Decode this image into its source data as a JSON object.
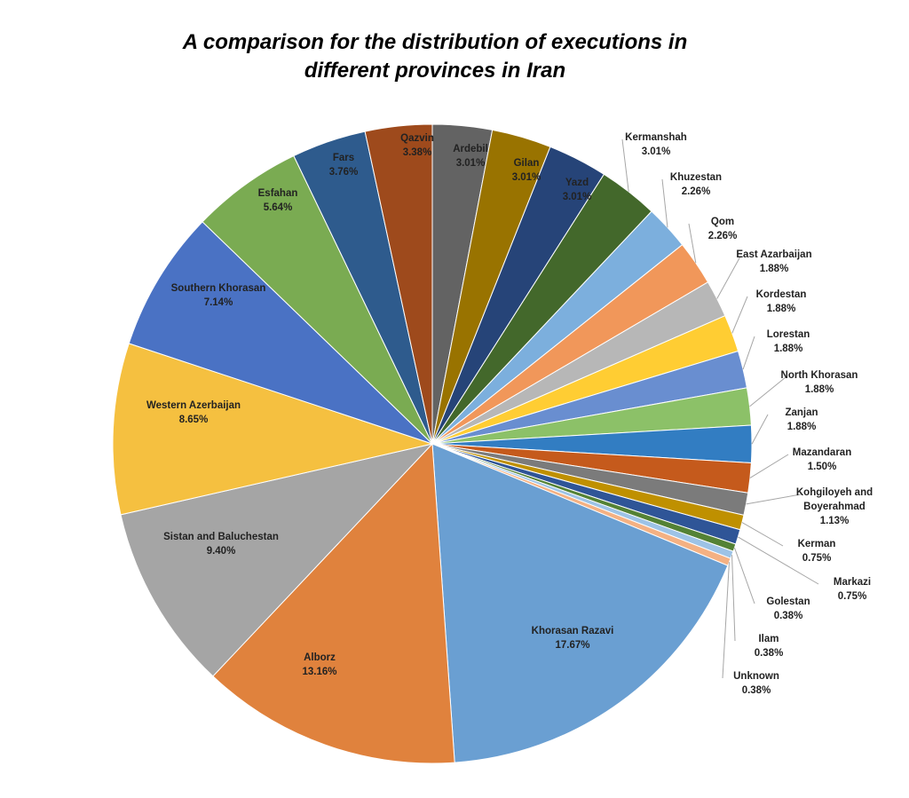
{
  "chart_data": {
    "type": "pie",
    "title": "A comparison for the distribution of executions in different provinces in Iran",
    "categories": [
      "Ardebil",
      "Gilan",
      "Yazd",
      "Kermanshah",
      "Khuzestan",
      "Qom",
      "East Azarbaijan",
      "Kordestan",
      "Lorestan",
      "North Khorasan",
      "Zanjan",
      "Mazandaran",
      "Kohgiloyeh and Boyerahmad",
      "Kerman",
      "Markazi",
      "Golestan",
      "Ilam",
      "Unknown",
      "Khorasan Razavi",
      "Alborz",
      "Sistan and Baluchestan",
      "Western Azerbaijan",
      "Southern Khorasan",
      "Esfahan",
      "Fars",
      "Qazvin"
    ],
    "values": [
      3.01,
      3.01,
      3.01,
      3.01,
      2.26,
      2.26,
      1.88,
      1.88,
      1.88,
      1.88,
      1.88,
      1.5,
      1.13,
      0.75,
      0.75,
      0.38,
      0.38,
      0.38,
      17.67,
      13.16,
      9.4,
      8.65,
      7.14,
      5.64,
      3.76,
      3.38
    ],
    "value_labels": [
      "3.01%",
      "3.01%",
      "3.01%",
      "3.01%",
      "2.26%",
      "2.26%",
      "1.88%",
      "1.88%",
      "1.88%",
      "1.88%",
      "1.88%",
      "1.50%",
      "1.13%",
      "0.75%",
      "0.75%",
      "0.38%",
      "0.38%",
      "0.38%",
      "17.67%",
      "13.16%",
      "9.40%",
      "8.65%",
      "7.14%",
      "5.64%",
      "3.76%",
      "3.38%"
    ],
    "colors": [
      "#636363",
      "#997300",
      "#264478",
      "#43682b",
      "#7cafdd",
      "#f1975a",
      "#b7b7b7",
      "#ffcd33",
      "#698ed0",
      "#8cc168",
      "#327dc2",
      "#c55a1c",
      "#7b7b7b",
      "#bf9000",
      "#2f5597",
      "#548235",
      "#9dc3e6",
      "#f4b183",
      "#6a9fd2",
      "#e0823d",
      "#a5a5a5",
      "#f5c040",
      "#4a72c4",
      "#7aab52",
      "#2e5b8d",
      "#9e4a1c"
    ]
  }
}
